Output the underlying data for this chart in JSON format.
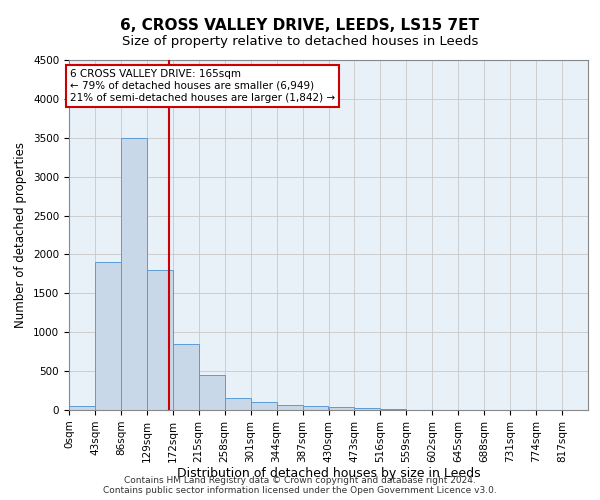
{
  "title": "6, CROSS VALLEY DRIVE, LEEDS, LS15 7ET",
  "subtitle": "Size of property relative to detached houses in Leeds",
  "xlabel": "Distribution of detached houses by size in Leeds",
  "ylabel": "Number of detached properties",
  "footer_line1": "Contains HM Land Registry data © Crown copyright and database right 2024.",
  "footer_line2": "Contains public sector information licensed under the Open Government Licence v3.0.",
  "bin_edges": [
    0,
    43,
    86,
    129,
    172,
    215,
    258,
    301,
    344,
    387,
    430,
    473,
    516,
    559,
    602,
    645,
    688,
    731,
    774,
    817,
    860
  ],
  "bar_values": [
    50,
    1900,
    3500,
    1800,
    850,
    450,
    160,
    100,
    60,
    50,
    40,
    20,
    10,
    5,
    3,
    2,
    2,
    1,
    1,
    1
  ],
  "bar_color": "#c8d8e8",
  "bar_edgecolor": "#5b9bd5",
  "property_size": 165,
  "vline_color": "#cc0000",
  "annotation_line1": "6 CROSS VALLEY DRIVE: 165sqm",
  "annotation_line2": "← 79% of detached houses are smaller (6,949)",
  "annotation_line3": "21% of semi-detached houses are larger (1,842) →",
  "annotation_box_color": "#cc0000",
  "ylim": [
    0,
    4500
  ],
  "yticks": [
    0,
    500,
    1000,
    1500,
    2000,
    2500,
    3000,
    3500,
    4000,
    4500
  ],
  "grid_color": "#c8c8c8",
  "bg_color": "#e8f0f8",
  "title_fontsize": 11,
  "subtitle_fontsize": 9.5,
  "ylabel_fontsize": 8.5,
  "xlabel_fontsize": 9,
  "tick_fontsize": 7.5,
  "annotation_fontsize": 7.5,
  "footer_fontsize": 6.5
}
